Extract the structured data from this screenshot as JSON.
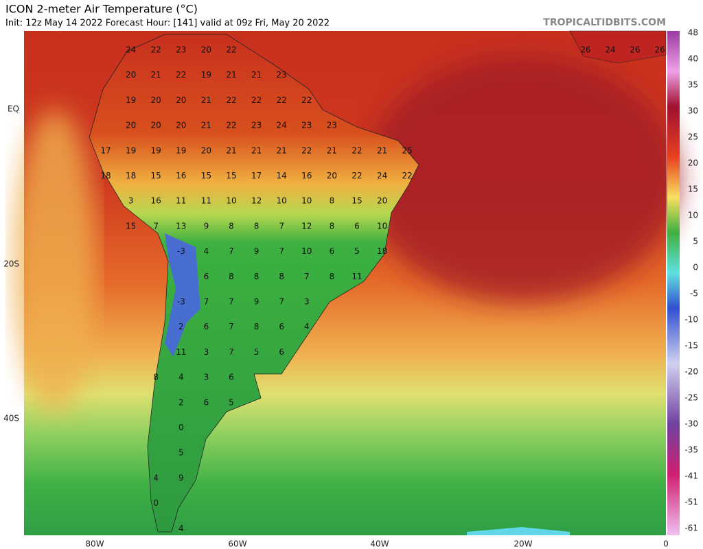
{
  "header": {
    "title": "ICON 2-meter Air Temperature (°C)",
    "subtitle": "Init: 12z May 14 2022   Forecast Hour: [141]   valid at 09z Fri, May 20 2022",
    "source": "TROPICALTIDBITS.COM"
  },
  "axes": {
    "longitudes": [
      "80W",
      "60W",
      "40W",
      "20W",
      "0"
    ],
    "latitudes": [
      "EQ",
      "20S",
      "40S"
    ]
  },
  "colorbar": {
    "labels": [
      48,
      40,
      35,
      30,
      25,
      20,
      15,
      10,
      5,
      0,
      -5,
      -10,
      -15,
      -20,
      -25,
      -30,
      -35,
      -41,
      -51,
      -61
    ]
  },
  "map": {
    "labels": [
      [
        24,
        22,
        23,
        20,
        22
      ],
      [
        20,
        21,
        22,
        19,
        21,
        21,
        23
      ],
      [
        19,
        20,
        20,
        21,
        22,
        22,
        22,
        22
      ],
      [
        20,
        20,
        20,
        21,
        22,
        23,
        24,
        23,
        23
      ],
      [
        17,
        19,
        19,
        19,
        20,
        21,
        21,
        21,
        22,
        21,
        22,
        21,
        25
      ],
      [
        18,
        18,
        15,
        16,
        15,
        15,
        17,
        14,
        16,
        20,
        22,
        24,
        22
      ],
      [
        3,
        16,
        11,
        11,
        10,
        12,
        10,
        10,
        8,
        15,
        20
      ],
      [
        15,
        7,
        13,
        9,
        8,
        8,
        7,
        12,
        8,
        6,
        10
      ],
      [
        -3,
        4,
        7,
        9,
        7,
        10,
        6,
        5,
        18
      ],
      [
        6,
        8,
        8,
        8,
        7,
        8,
        11
      ],
      [
        -3,
        7,
        7,
        9,
        7,
        3
      ],
      [
        2,
        6,
        7,
        8,
        6,
        4
      ],
      [
        11,
        3,
        7,
        5,
        6
      ],
      [
        8,
        4,
        3,
        6
      ],
      [
        2,
        6,
        5
      ],
      [
        0
      ],
      [
        5
      ],
      [
        4,
        9
      ],
      [
        0
      ],
      [
        4
      ]
    ],
    "labels_east": [
      26,
      24,
      26,
      26
    ]
  }
}
